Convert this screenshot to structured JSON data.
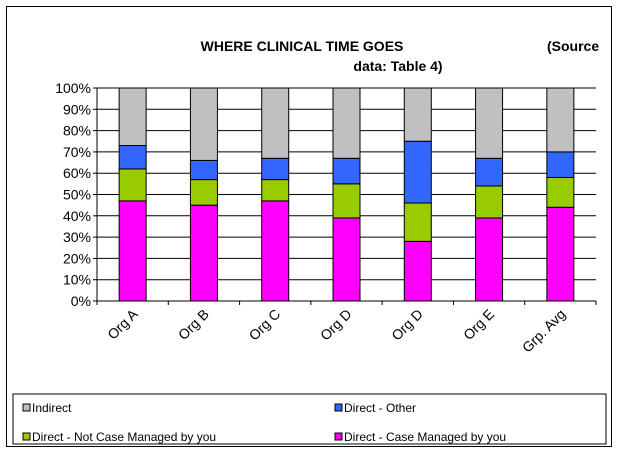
{
  "chart_data": {
    "type": "bar",
    "stacked": true,
    "title_line1": "WHERE CLINICAL TIME GOES",
    "title_line1_right": "(Source",
    "title_line2": "data: Table 4)",
    "categories": [
      "Org A",
      "Org B",
      "Org C",
      "Org D",
      "Org D",
      "Org E",
      "Grp. Avg"
    ],
    "series": [
      {
        "name": "Direct - Case Managed by you",
        "color": "#ff00ff",
        "values": [
          47,
          45,
          47,
          39,
          28,
          39,
          44
        ]
      },
      {
        "name": "Direct - Not Case Managed by you",
        "color": "#99cc00",
        "values": [
          15,
          12,
          10,
          16,
          18,
          15,
          14
        ]
      },
      {
        "name": "Direct - Other",
        "color": "#3366ff",
        "values": [
          11,
          9,
          10,
          12,
          29,
          13,
          12
        ]
      },
      {
        "name": "Indirect",
        "color": "#c0c0c0",
        "values": [
          27,
          34,
          33,
          33,
          25,
          33,
          30
        ]
      }
    ],
    "y_ticks": [
      "0%",
      "10%",
      "20%",
      "30%",
      "40%",
      "50%",
      "60%",
      "70%",
      "80%",
      "90%",
      "100%"
    ],
    "ylim": [
      0,
      100
    ],
    "grid": true,
    "legend": {
      "placement": "bottom",
      "items": [
        {
          "label": "Indirect",
          "color": "#c0c0c0"
        },
        {
          "label": "Direct - Other",
          "color": "#3366ff"
        },
        {
          "label": "Direct - Not Case Managed by you",
          "color": "#99cc00"
        },
        {
          "label": "Direct - Case Managed by you",
          "color": "#ff00ff"
        }
      ]
    }
  }
}
